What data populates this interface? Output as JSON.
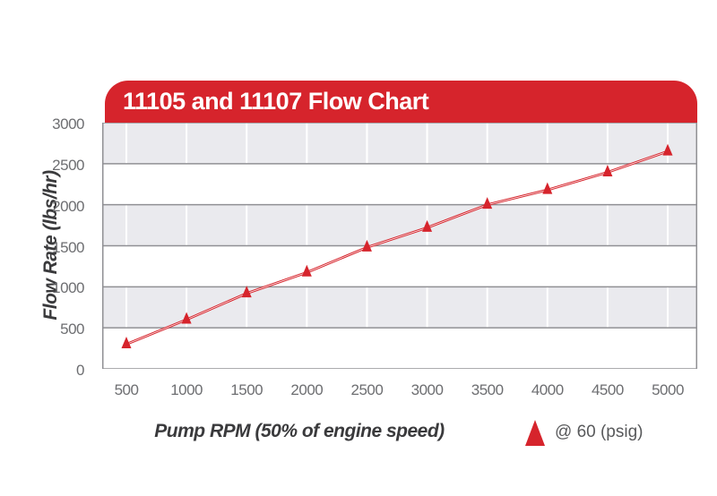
{
  "chart": {
    "title": "11105 and 11107 Flow Chart",
    "y_axis_label": "Flow Rate (lbs/hr)",
    "x_axis_label": "Pump RPM (50% of engine speed)",
    "legend": {
      "marker": "red-triangle-icon",
      "label": "@ 60 (psig)"
    }
  },
  "chart_data": {
    "type": "line",
    "title": "11105 and 11107 Flow Chart",
    "xlabel": "Pump RPM (50% of engine speed)",
    "ylabel": "Flow Rate (lbs/hr)",
    "x": [
      500,
      1000,
      1500,
      2000,
      2500,
      3000,
      3500,
      4000,
      4500,
      5000
    ],
    "series": [
      {
        "name": "@ 60 (psig)",
        "marker": "triangle",
        "values": [
          300,
          600,
          920,
          1175,
          1480,
          1720,
          2000,
          2180,
          2395,
          2650
        ]
      }
    ],
    "x_ticks": [
      500,
      1000,
      1500,
      2000,
      2500,
      3000,
      3500,
      4000,
      4500,
      5000
    ],
    "y_ticks": [
      0,
      500,
      1000,
      1500,
      2000,
      2500,
      3000
    ],
    "xlim": [
      300,
      5250
    ],
    "ylim": [
      0,
      3000
    ],
    "grid": "horizontal-bands-alternating",
    "legend_position": "bottom-right"
  },
  "colors": {
    "accent_red": "#d6242c",
    "band_gray": "#eaeaee",
    "grid_gray": "#909094",
    "vgrid_white": "#ffffff",
    "tick_text": "#6d6e71",
    "axis_label_text": "#3a3a3c",
    "legend_text": "#58595b",
    "title_text": "#ffffff",
    "background": "#ffffff"
  }
}
